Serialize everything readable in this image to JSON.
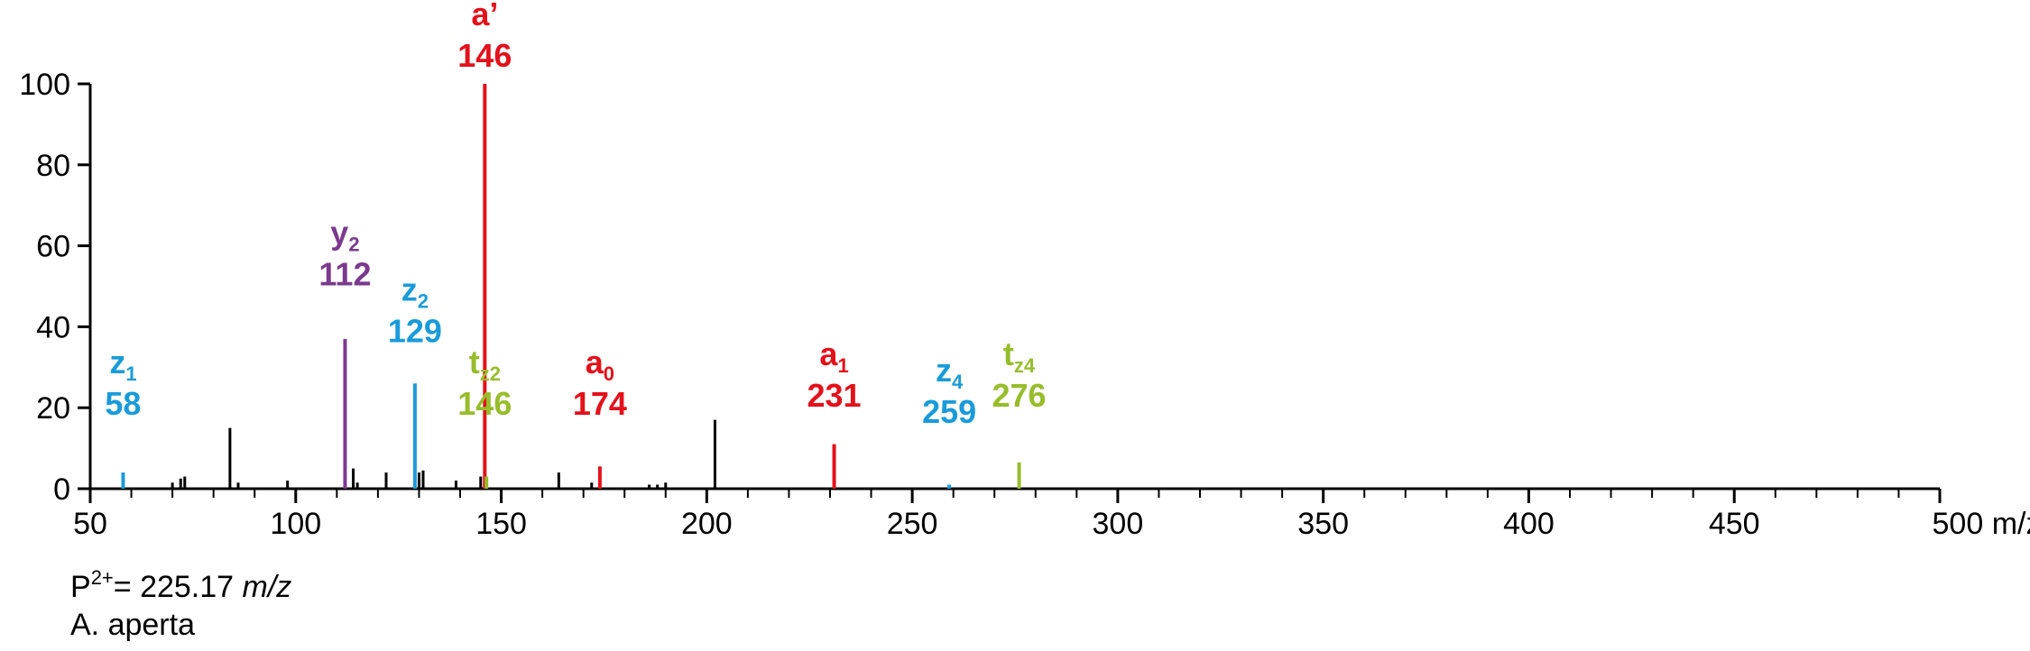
{
  "chart_data": {
    "type": "bar",
    "xlim": [
      50,
      500
    ],
    "ylim": [
      0,
      100
    ],
    "x_ticks": [
      "50",
      "100",
      "150",
      "200",
      "250",
      "300",
      "350",
      "400",
      "450",
      "500"
    ],
    "x_unit": "m/z",
    "y_ticks": [
      "0",
      "20",
      "40",
      "60",
      "80",
      "100"
    ],
    "colors": {
      "red": "#e3111b",
      "blue": "#1a9bd9",
      "purple": "#7b3a8e",
      "green": "#97bd2b",
      "black": "#000000"
    },
    "peaks": [
      {
        "x": 58,
        "y": 4,
        "color": "blue"
      },
      {
        "x": 70,
        "y": 1.5,
        "color": "black"
      },
      {
        "x": 72,
        "y": 2.5,
        "color": "black"
      },
      {
        "x": 73,
        "y": 3,
        "color": "black"
      },
      {
        "x": 84,
        "y": 15,
        "color": "black"
      },
      {
        "x": 86,
        "y": 1.5,
        "color": "black"
      },
      {
        "x": 98,
        "y": 2,
        "color": "black"
      },
      {
        "x": 112,
        "y": 37,
        "color": "purple"
      },
      {
        "x": 114,
        "y": 5,
        "color": "black"
      },
      {
        "x": 115,
        "y": 1.5,
        "color": "black"
      },
      {
        "x": 122,
        "y": 4,
        "color": "black"
      },
      {
        "x": 129,
        "y": 26,
        "color": "blue"
      },
      {
        "x": 130,
        "y": 4,
        "color": "black"
      },
      {
        "x": 131,
        "y": 4.5,
        "color": "black"
      },
      {
        "x": 139,
        "y": 2,
        "color": "black"
      },
      {
        "x": 145,
        "y": 3,
        "color": "black"
      },
      {
        "x": 146,
        "y": 100,
        "color": "red"
      },
      {
        "x": 146.4,
        "y": 3,
        "color": "green"
      },
      {
        "x": 164,
        "y": 4,
        "color": "black"
      },
      {
        "x": 172,
        "y": 1.5,
        "color": "black"
      },
      {
        "x": 174,
        "y": 5.5,
        "color": "red"
      },
      {
        "x": 186,
        "y": 1,
        "color": "black"
      },
      {
        "x": 188,
        "y": 1,
        "color": "black"
      },
      {
        "x": 190,
        "y": 1.5,
        "color": "black"
      },
      {
        "x": 202,
        "y": 17,
        "color": "black"
      },
      {
        "x": 231,
        "y": 11,
        "color": "red"
      },
      {
        "x": 259,
        "y": 1,
        "color": "blue"
      },
      {
        "x": 276,
        "y": 6.5,
        "color": "green"
      }
    ],
    "annotations": [
      {
        "ion": "z",
        "sub": "1",
        "value": "58",
        "x": 58,
        "color": "blue",
        "label_y": 20
      },
      {
        "ion": "y",
        "sub": "2",
        "value": "112",
        "x": 112,
        "color": "purple",
        "label_y": 52
      },
      {
        "ion": "z",
        "sub": "2",
        "value": "129",
        "x": 129,
        "color": "blue",
        "label_y": 38
      },
      {
        "ion": "t",
        "sub": "z2",
        "value": "146",
        "x": 146,
        "color": "green",
        "label_y": 20
      },
      {
        "ion": "a’",
        "sub": "",
        "value": "146",
        "x": 146,
        "color": "red",
        "label_y": 106
      },
      {
        "ion": "a",
        "sub": "0",
        "value": "174",
        "x": 174,
        "color": "red",
        "label_y": 20
      },
      {
        "ion": "a",
        "sub": "1",
        "value": "231",
        "x": 231,
        "color": "red",
        "label_y": 22
      },
      {
        "ion": "z",
        "sub": "4",
        "value": "259",
        "x": 259,
        "color": "blue",
        "label_y": 18
      },
      {
        "ion": "t",
        "sub": "z4",
        "value": "276",
        "x": 276,
        "color": "green",
        "label_y": 22
      }
    ]
  },
  "caption": {
    "precursor_prefix": "P",
    "precursor_charge": "2+",
    "precursor_value": "= 225.17 ",
    "precursor_unit": "m/z",
    "species": "A. aperta"
  }
}
